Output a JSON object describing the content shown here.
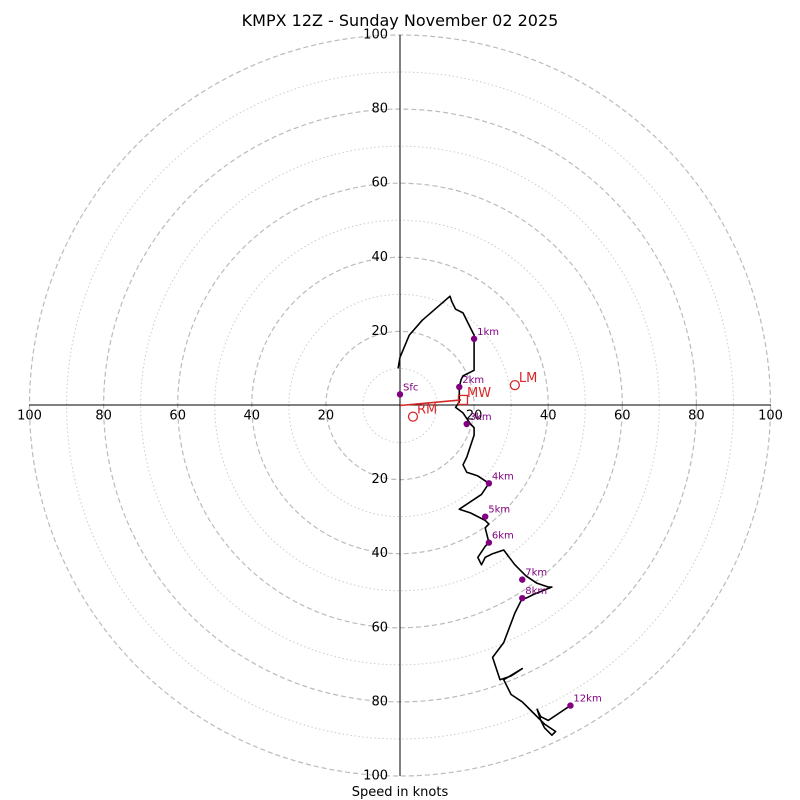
{
  "chart_data": {
    "type": "hodograph",
    "title": "KMPX 12Z - Sunday November 02 2025",
    "xlabel": "Speed in knots",
    "speed_max": 100,
    "major_rings": [
      20,
      40,
      60,
      80,
      100
    ],
    "minor_rings": [
      10,
      30,
      50,
      70,
      90
    ],
    "axis_ticks": [
      {
        "value": 100,
        "label": "100"
      },
      {
        "value": 80,
        "label": "80"
      },
      {
        "value": 60,
        "label": "60"
      },
      {
        "value": 40,
        "label": "40"
      },
      {
        "value": 20,
        "label": "20"
      }
    ],
    "trace": [
      [
        -0.5,
        10
      ],
      [
        0,
        13
      ],
      [
        2.5,
        19
      ],
      [
        6,
        23
      ],
      [
        13.5,
        29.5
      ],
      [
        14,
        28
      ],
      [
        15,
        26
      ],
      [
        17,
        25
      ],
      [
        18.5,
        22
      ],
      [
        20,
        19
      ],
      [
        20,
        18
      ],
      [
        20,
        15
      ],
      [
        20,
        12
      ],
      [
        20,
        9.5
      ],
      [
        17,
        8
      ],
      [
        16.5,
        7
      ],
      [
        16,
        5
      ],
      [
        16,
        3
      ],
      [
        16,
        1
      ],
      [
        15,
        -0.5
      ],
      [
        17,
        -2
      ],
      [
        19,
        -5
      ],
      [
        20,
        -6
      ],
      [
        20,
        -8
      ],
      [
        19,
        -11
      ],
      [
        18,
        -14
      ],
      [
        17,
        -16
      ],
      [
        18,
        -18
      ],
      [
        21,
        -19
      ],
      [
        24,
        -21
      ],
      [
        22,
        -24
      ],
      [
        19,
        -26
      ],
      [
        16,
        -28
      ],
      [
        19,
        -29
      ],
      [
        21,
        -30
      ],
      [
        23,
        -31
      ],
      [
        24,
        -32
      ],
      [
        23,
        -33
      ],
      [
        24,
        -37
      ],
      [
        23,
        -38
      ],
      [
        21,
        -41
      ],
      [
        22,
        -43
      ],
      [
        23,
        -41
      ],
      [
        25,
        -40
      ],
      [
        28,
        -39
      ],
      [
        31,
        -43
      ],
      [
        34,
        -46
      ],
      [
        37,
        -48
      ],
      [
        40,
        -49
      ],
      [
        41,
        -49
      ],
      [
        36,
        -51
      ],
      [
        34,
        -52
      ],
      [
        33,
        -52
      ],
      [
        31,
        -56
      ],
      [
        28,
        -64
      ],
      [
        25,
        -68
      ],
      [
        27,
        -74
      ],
      [
        30,
        -73
      ],
      [
        33,
        -71
      ],
      [
        28,
        -74
      ],
      [
        30,
        -78
      ],
      [
        33,
        -80
      ],
      [
        36,
        -83
      ],
      [
        39,
        -86
      ],
      [
        42,
        -88
      ],
      [
        41,
        -89
      ],
      [
        39,
        -87
      ],
      [
        38,
        -85
      ],
      [
        37,
        -82
      ],
      [
        38,
        -84
      ],
      [
        40,
        -85
      ],
      [
        43,
        -83
      ],
      [
        46,
        -81
      ]
    ],
    "height_markers": [
      {
        "label": "Sfc",
        "u": 0,
        "v": 3
      },
      {
        "label": "1km",
        "u": 20,
        "v": 18
      },
      {
        "label": "2km",
        "u": 16,
        "v": 5
      },
      {
        "label": "3km",
        "u": 18,
        "v": -5
      },
      {
        "label": "4km",
        "u": 24,
        "v": -21
      },
      {
        "label": "5km",
        "u": 23,
        "v": -30
      },
      {
        "label": "6km",
        "u": 24,
        "v": -37
      },
      {
        "label": "7km",
        "u": 33,
        "v": -47
      },
      {
        "label": "8km",
        "u": 33,
        "v": -52
      },
      {
        "label": "12km",
        "u": 46,
        "v": -81
      }
    ],
    "storm_motion": [
      {
        "label": "LM",
        "u": 31,
        "v": 5.5
      },
      {
        "label": "RM",
        "u": 3.5,
        "v": -3
      },
      {
        "label": "MW",
        "u": 17,
        "v": 1.5
      }
    ],
    "shear_vector": {
      "from": [
        0,
        0
      ],
      "to": [
        16.5,
        1.5
      ]
    },
    "colors": {
      "trace": "#000000",
      "markers": "#800080",
      "motion": "#d62728",
      "grid": "#bbbbbb"
    }
  }
}
